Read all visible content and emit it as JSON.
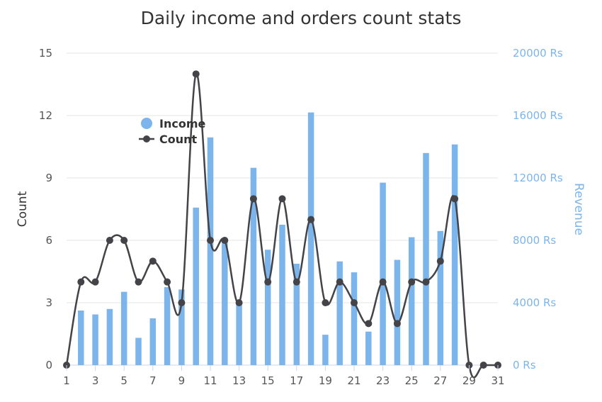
{
  "chart_data": {
    "type": "bar+line",
    "title": "Daily income and orders count stats",
    "x": [
      "1",
      "2",
      "3",
      "4",
      "5",
      "6",
      "7",
      "8",
      "9",
      "10",
      "11",
      "12",
      "13",
      "14",
      "15",
      "16",
      "17",
      "18",
      "19",
      "20",
      "21",
      "22",
      "23",
      "24",
      "25",
      "26",
      "27",
      "28",
      "29",
      "30",
      "31"
    ],
    "x_tick_labels": [
      "1",
      "3",
      "5",
      "7",
      "9",
      "11",
      "13",
      "15",
      "17",
      "19",
      "21",
      "23",
      "25",
      "27",
      "29",
      "31"
    ],
    "series": [
      {
        "name": "Income",
        "type": "bar",
        "axis": "right",
        "color": "#7cb5ec",
        "values": [
          0,
          3500,
          3250,
          3600,
          4700,
          1750,
          3000,
          5000,
          4850,
          10100,
          14600,
          8000,
          4050,
          12650,
          7400,
          9000,
          6500,
          16200,
          1950,
          6650,
          5950,
          2150,
          11700,
          6750,
          8200,
          13600,
          8600,
          14150,
          0,
          0,
          0
        ]
      },
      {
        "name": "Count",
        "type": "spline",
        "axis": "left",
        "color": "#434348",
        "values": [
          0,
          4,
          4,
          6,
          6,
          4,
          5,
          4,
          3,
          14,
          6,
          6,
          3,
          8,
          4,
          8,
          4,
          7,
          3,
          4,
          3,
          2,
          4,
          2,
          4,
          4,
          5,
          8,
          0,
          0,
          0
        ]
      }
    ],
    "y_left": {
      "label": "Count",
      "ticks": [
        "0",
        "3",
        "6",
        "9",
        "12",
        "15"
      ],
      "min": 0,
      "max": 15
    },
    "y_right": {
      "label": "Revenue",
      "ticks": [
        "0 Rs",
        "4000 Rs",
        "8000 Rs",
        "12000 Rs",
        "16000 Rs",
        "20000 Rs"
      ],
      "min": 0,
      "max": 20000
    },
    "legend": {
      "position": "top-left-inside",
      "items": [
        "Income",
        "Count"
      ]
    },
    "grid": true
  }
}
